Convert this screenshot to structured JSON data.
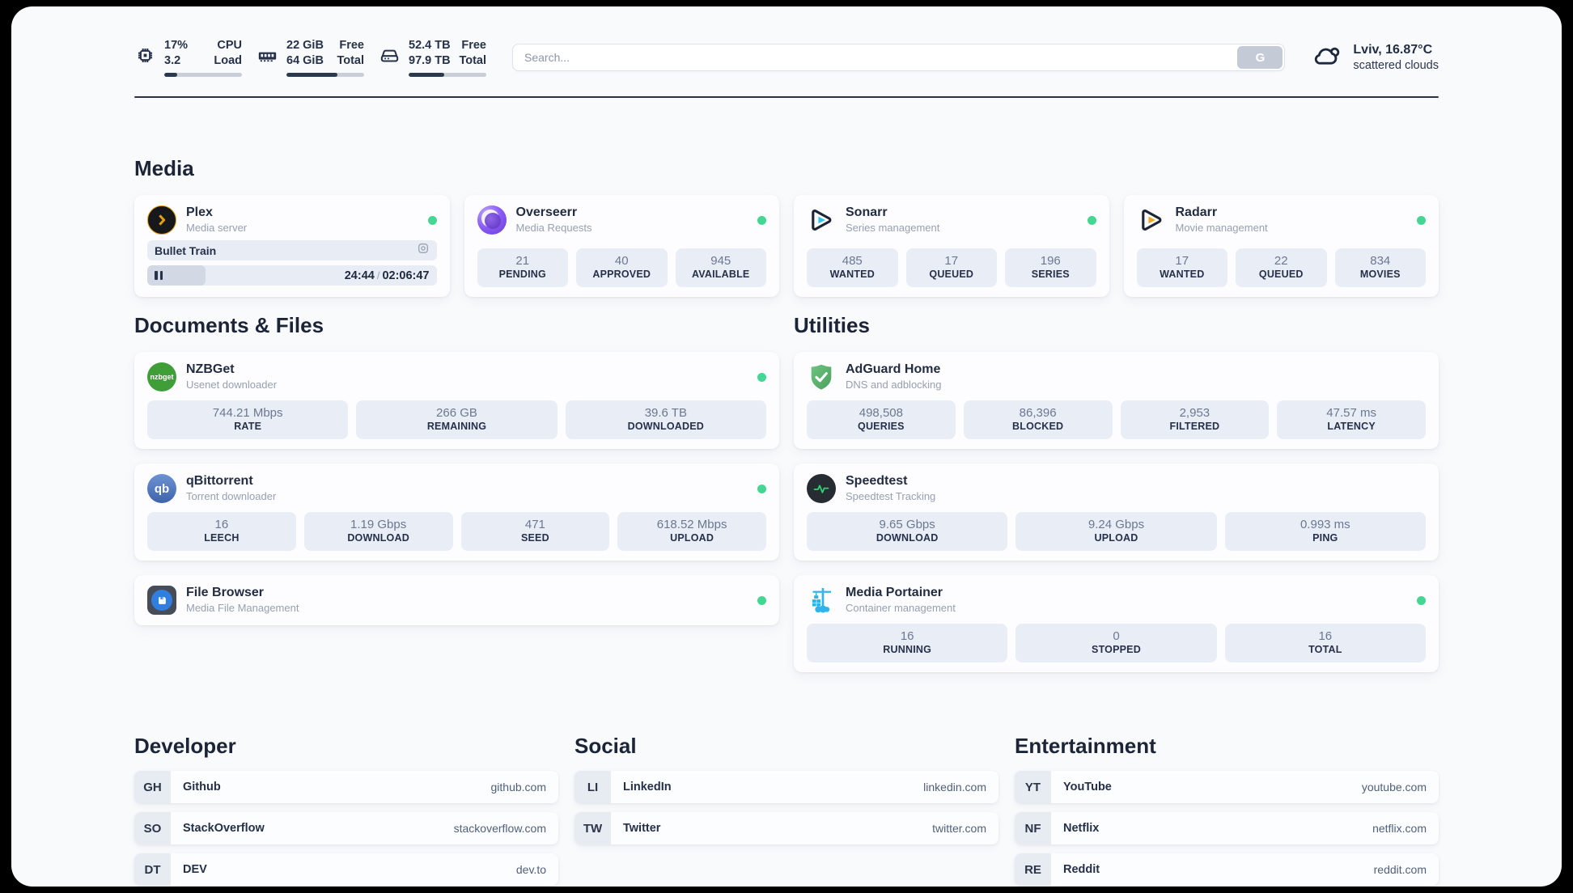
{
  "header": {
    "stats": [
      {
        "icon": "cpu-icon",
        "value_top": "17%",
        "value_bottom": "3.2",
        "label_top": "CPU",
        "label_bottom": "Load",
        "percent": 17
      },
      {
        "icon": "ram-icon",
        "value_top": "22 GiB",
        "value_bottom": "64 GiB",
        "label_top": "Free",
        "label_bottom": "Total",
        "percent": 66
      },
      {
        "icon": "disk-icon",
        "value_top": "52.4 TB",
        "value_bottom": "97.9 TB",
        "label_top": "Free",
        "label_bottom": "Total",
        "percent": 46
      }
    ],
    "search": {
      "placeholder": "Search...",
      "button_label": "G"
    },
    "weather": {
      "icon": "cloud-icon",
      "summary": "Lviv, 16.87°C",
      "condition": "scattered clouds"
    }
  },
  "media": {
    "title": "Media",
    "cards": [
      {
        "name": "Plex",
        "subtitle": "Media server",
        "icon": "plex-chevron-icon",
        "online": true,
        "now_playing": "Bullet Train",
        "elapsed": "24:44",
        "separator": "/",
        "duration": "02:06:47",
        "progress_percent": 20
      },
      {
        "name": "Overseerr",
        "subtitle": "Media Requests",
        "icon": "overseerr-eye-icon",
        "online": true,
        "stats": [
          {
            "value": "21",
            "label": "PENDING"
          },
          {
            "value": "40",
            "label": "APPROVED"
          },
          {
            "value": "945",
            "label": "AVAILABLE"
          }
        ]
      },
      {
        "name": "Sonarr",
        "subtitle": "Series management",
        "icon": "sonarr-play-icon",
        "online": true,
        "stats": [
          {
            "value": "485",
            "label": "WANTED"
          },
          {
            "value": "17",
            "label": "QUEUED"
          },
          {
            "value": "196",
            "label": "SERIES"
          }
        ]
      },
      {
        "name": "Radarr",
        "subtitle": "Movie management",
        "icon": "radarr-play-icon",
        "online": true,
        "stats": [
          {
            "value": "17",
            "label": "WANTED"
          },
          {
            "value": "22",
            "label": "QUEUED"
          },
          {
            "value": "834",
            "label": "MOVIES"
          }
        ]
      }
    ]
  },
  "documents": {
    "title": "Documents & Files",
    "apps": [
      {
        "name": "NZBGet",
        "subtitle": "Usenet downloader",
        "icon": "nzbget-icon",
        "icon_text": "nzbget",
        "online": true,
        "stats": [
          {
            "value": "744.21 Mbps",
            "label": "RATE"
          },
          {
            "value": "266 GB",
            "label": "REMAINING"
          },
          {
            "value": "39.6 TB",
            "label": "DOWNLOADED"
          }
        ]
      },
      {
        "name": "qBittorrent",
        "subtitle": "Torrent downloader",
        "icon": "qbittorrent-icon",
        "icon_text": "qb",
        "online": true,
        "stats": [
          {
            "value": "16",
            "label": "LEECH"
          },
          {
            "value": "1.19 Gbps",
            "label": "DOWNLOAD"
          },
          {
            "value": "471",
            "label": "SEED"
          },
          {
            "value": "618.52 Mbps",
            "label": "UPLOAD"
          }
        ]
      },
      {
        "name": "File Browser",
        "subtitle": "Media File Management",
        "icon": "filebrowser-floppy-icon",
        "online": true,
        "stats": []
      }
    ]
  },
  "utilities": {
    "title": "Utilities",
    "apps": [
      {
        "name": "AdGuard Home",
        "subtitle": "DNS and adblocking",
        "icon": "adguard-shield-icon",
        "online": false,
        "stats": [
          {
            "value": "498,508",
            "label": "QUERIES"
          },
          {
            "value": "86,396",
            "label": "BLOCKED"
          },
          {
            "value": "2,953",
            "label": "FILTERED"
          },
          {
            "value": "47.57 ms",
            "label": "LATENCY"
          }
        ]
      },
      {
        "name": "Speedtest",
        "subtitle": "Speedtest Tracking",
        "icon": "speedtest-pulse-icon",
        "online": false,
        "stats": [
          {
            "value": "9.65 Gbps",
            "label": "DOWNLOAD"
          },
          {
            "value": "9.24 Gbps",
            "label": "UPLOAD"
          },
          {
            "value": "0.993 ms",
            "label": "PING"
          }
        ]
      },
      {
        "name": "Media Portainer",
        "subtitle": "Container management",
        "icon": "portainer-crane-icon",
        "online": true,
        "stats": [
          {
            "value": "16",
            "label": "RUNNING"
          },
          {
            "value": "0",
            "label": "STOPPED"
          },
          {
            "value": "16",
            "label": "TOTAL"
          }
        ]
      }
    ]
  },
  "link_groups": [
    {
      "title": "Developer",
      "links": [
        {
          "badge": "GH",
          "name": "Github",
          "domain": "github.com"
        },
        {
          "badge": "SO",
          "name": "StackOverflow",
          "domain": "stackoverflow.com"
        },
        {
          "badge": "DT",
          "name": "DEV",
          "domain": "dev.to"
        }
      ]
    },
    {
      "title": "Social",
      "links": [
        {
          "badge": "LI",
          "name": "LinkedIn",
          "domain": "linkedin.com"
        },
        {
          "badge": "TW",
          "name": "Twitter",
          "domain": "twitter.com"
        }
      ]
    },
    {
      "title": "Entertainment",
      "links": [
        {
          "badge": "YT",
          "name": "YouTube",
          "domain": "youtube.com"
        },
        {
          "badge": "NF",
          "name": "Netflix",
          "domain": "netflix.com"
        },
        {
          "badge": "RE",
          "name": "Reddit",
          "domain": "reddit.com"
        }
      ]
    }
  ],
  "colors": {
    "status_online": "#45d693",
    "plex_accent": "#e5a00d",
    "sonarr_accent": "#35c5f1",
    "radarr_accent": "#f5a623",
    "overseerr_accent": "#8b5cf6",
    "nzbget_accent": "#3f9e38",
    "qbittorrent_accent": "#4b72b8",
    "adguard_accent": "#5fb370",
    "speedtest_accent": "#2dd673",
    "portainer_accent": "#2fb3e8",
    "progress_fill": "#2b3950"
  }
}
